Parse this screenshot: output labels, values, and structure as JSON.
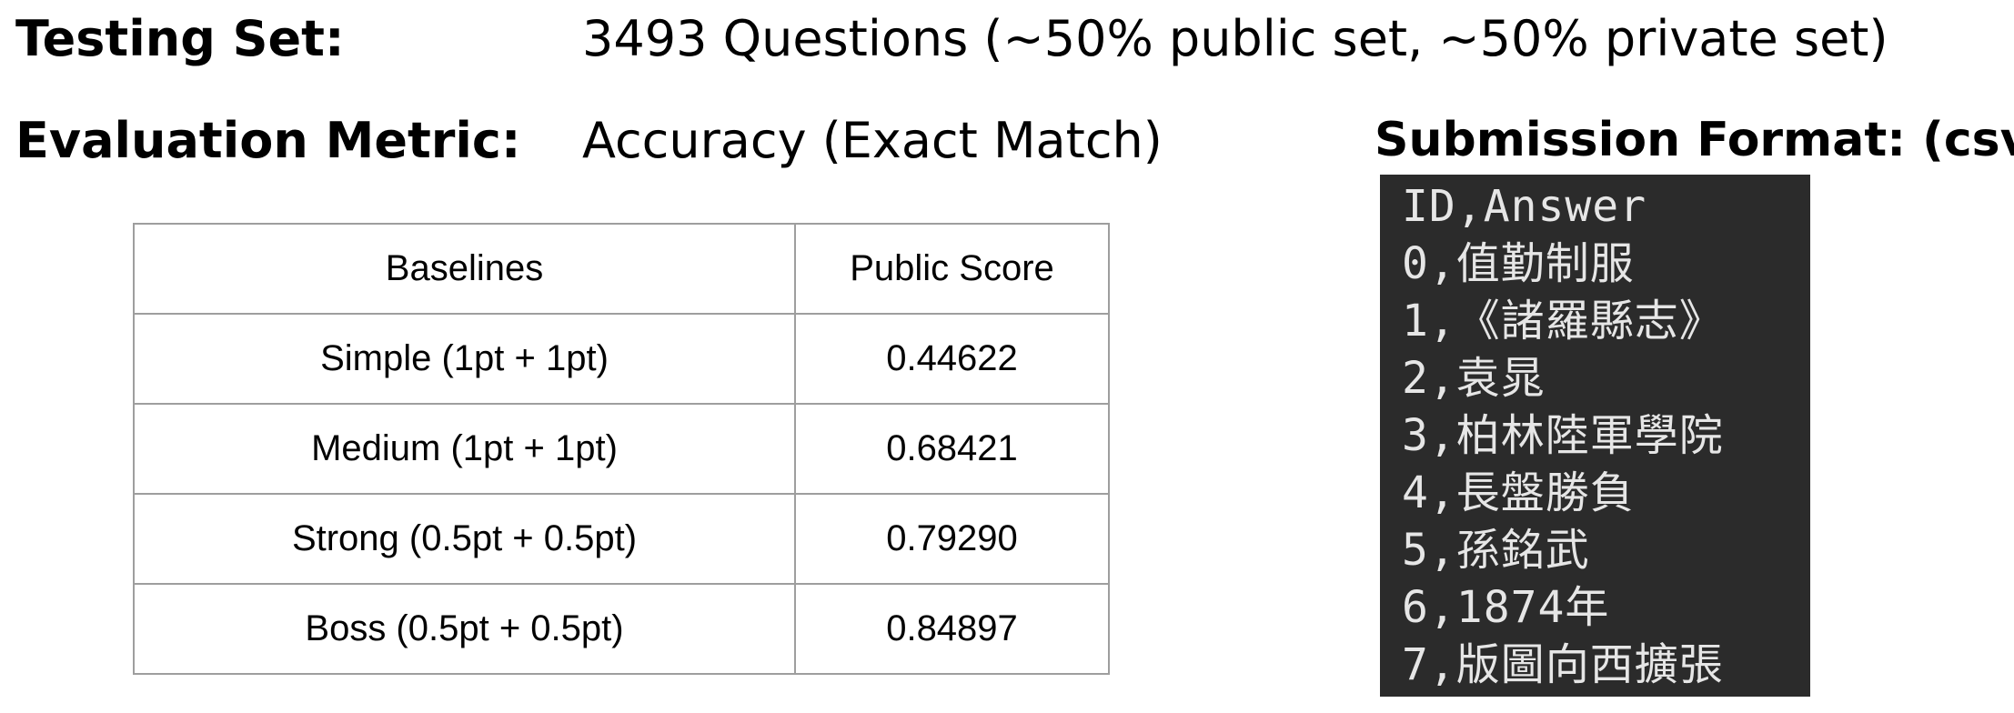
{
  "testing_set": {
    "label": "Testing Set:",
    "value": "3493 Questions (~50% public set, ~50% private set)"
  },
  "evaluation_metric": {
    "label": "Evaluation Metric:",
    "value": "Accuracy (Exact Match)"
  },
  "baselines_table": {
    "headers": [
      "Baselines",
      "Public Score"
    ],
    "rows": [
      {
        "baseline": "Simple (1pt + 1pt)",
        "score": "0.44622"
      },
      {
        "baseline": "Medium (1pt + 1pt)",
        "score": "0.68421"
      },
      {
        "baseline": "Strong (0.5pt + 0.5pt)",
        "score": "0.79290"
      },
      {
        "baseline": "Boss (0.5pt + 0.5pt)",
        "score": "0.84897"
      }
    ]
  },
  "submission_format": {
    "label": "Submission Format: (csv)",
    "lines": [
      "ID,Answer",
      "0,值勤制服",
      "1,《諸羅縣志》",
      "2,袁晁",
      "3,柏林陸軍學院",
      "4,長盤勝負",
      "5,孫銘武",
      "6,1874年",
      "7,版圖向西擴張"
    ]
  },
  "colors": {
    "csv_background": "#2b2b2b",
    "csv_text": "#e6e6e6",
    "table_border": "#9e9e9e"
  }
}
